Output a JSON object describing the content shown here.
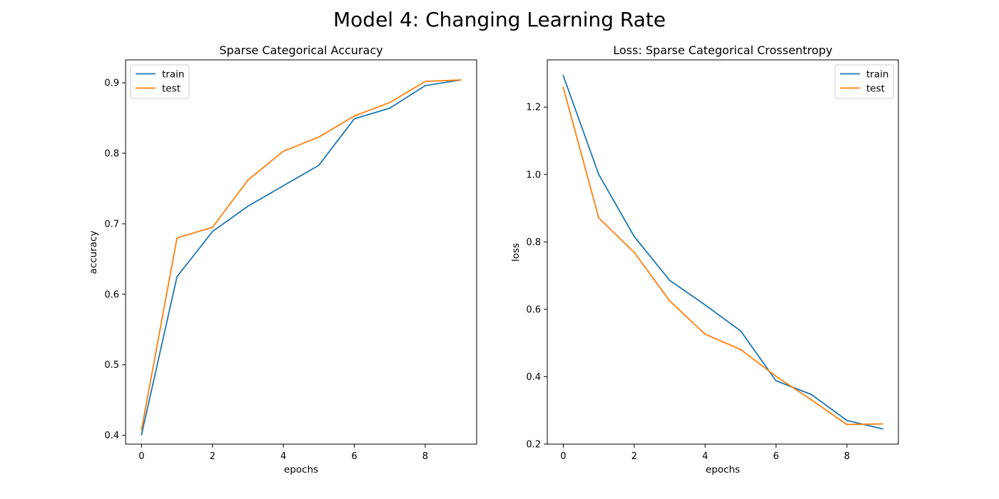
{
  "figure": {
    "title": "Model 4: Changing Learning Rate"
  },
  "colors": {
    "train": "#1f77b4",
    "test": "#ff7f0e",
    "background": "#ffffff"
  },
  "chart_data": [
    {
      "type": "line",
      "title": "Sparse Categorical Accuracy",
      "xlabel": "epochs",
      "ylabel": "accuracy",
      "xlim": [
        -0.45,
        9.45
      ],
      "ylim": [
        0.3875,
        0.9325
      ],
      "xticks": [
        0,
        2,
        4,
        6,
        8
      ],
      "yticks": [
        0.4,
        0.5,
        0.6,
        0.7,
        0.8,
        0.9
      ],
      "x": [
        0,
        1,
        2,
        3,
        4,
        5,
        6,
        7,
        8,
        9
      ],
      "legend_position": "upper-left",
      "grid": false,
      "series": [
        {
          "name": "train",
          "color": "#1f77b4",
          "values": [
            0.401,
            0.625,
            0.689,
            0.725,
            0.754,
            0.783,
            0.849,
            0.864,
            0.896,
            0.904
          ]
        },
        {
          "name": "test",
          "color": "#ff7f0e",
          "values": [
            0.408,
            0.68,
            0.695,
            0.762,
            0.803,
            0.823,
            0.853,
            0.872,
            0.902,
            0.904
          ]
        }
      ]
    },
    {
      "type": "line",
      "title": "Loss: Sparse Categorical Crossentropy",
      "xlabel": "epochs",
      "ylabel": "loss",
      "xlim": [
        -0.45,
        9.45
      ],
      "ylim": [
        0.2,
        1.34
      ],
      "xticks": [
        0,
        2,
        4,
        6,
        8
      ],
      "yticks": [
        0.2,
        0.4,
        0.6,
        0.8,
        1.0,
        1.2
      ],
      "x": [
        0,
        1,
        2,
        3,
        4,
        5,
        6,
        7,
        8,
        9
      ],
      "legend_position": "upper-right",
      "grid": false,
      "series": [
        {
          "name": "train",
          "color": "#1f77b4",
          "values": [
            1.293,
            1.0,
            0.816,
            0.686,
            0.613,
            0.536,
            0.388,
            0.347,
            0.27,
            0.245
          ]
        },
        {
          "name": "test",
          "color": "#ff7f0e",
          "values": [
            1.258,
            0.871,
            0.769,
            0.625,
            0.526,
            0.481,
            0.401,
            0.331,
            0.258,
            0.26
          ]
        }
      ]
    }
  ]
}
